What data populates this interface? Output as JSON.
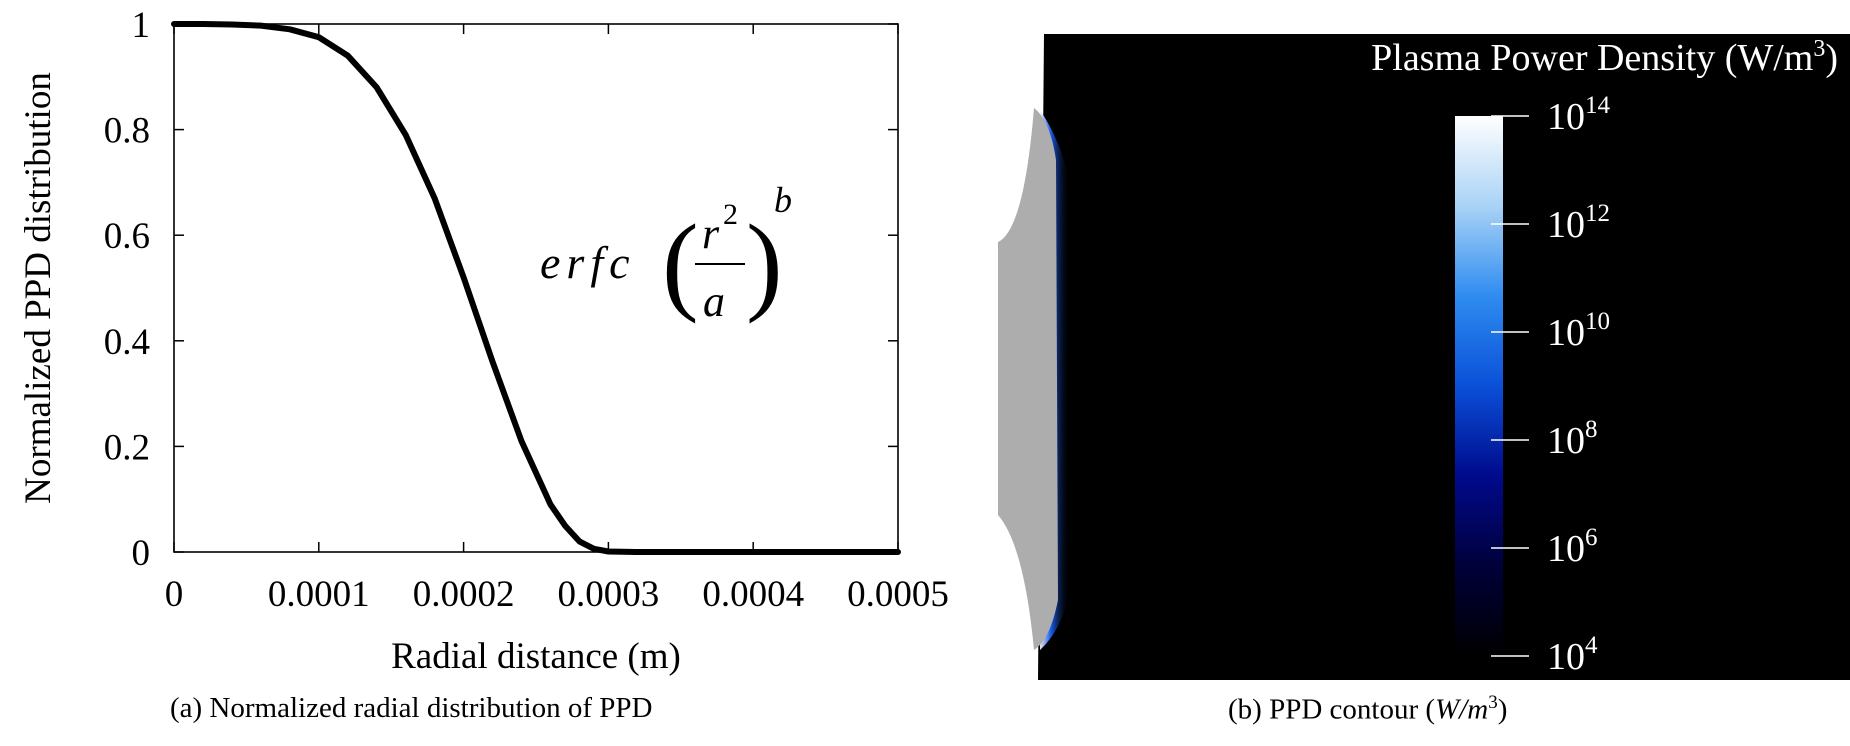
{
  "chart_data": [
    {
      "type": "line",
      "caption": "(a) Normalized radial distribution of PPD",
      "xlabel": "Radial distance (m)",
      "ylabel": "Normalized PPD distribution",
      "xlim": [
        0,
        0.0005
      ],
      "ylim": [
        0,
        1
      ],
      "xticks": [
        0,
        0.0001,
        0.0002,
        0.0003,
        0.0004,
        0.0005
      ],
      "xtick_labels": [
        "0",
        "0.0001",
        "0.0002",
        "0.0003",
        "0.0004",
        "0.0005"
      ],
      "yticks": [
        0,
        0.2,
        0.4,
        0.6,
        0.8,
        1
      ],
      "ytick_labels": [
        "0",
        "0.2",
        "0.4",
        "0.6",
        "0.8",
        "1"
      ],
      "grid": false,
      "annotation": {
        "prefix": "erfc",
        "numerator_base": "r",
        "numerator_exp": "2",
        "denominator": "a",
        "exponent": "b"
      },
      "series": [
        {
          "x": [
            0,
            2e-05,
            4e-05,
            6e-05,
            8e-05,
            0.0001,
            0.00012,
            0.00014,
            0.00016,
            0.00018,
            0.0002,
            0.00022,
            0.00024,
            0.00026,
            0.00027,
            0.00028,
            0.00029,
            0.0003,
            0.00032,
            0.00035,
            0.0004,
            0.00045,
            0.0005
          ],
          "y": [
            1.0,
            1.0,
            0.999,
            0.997,
            0.99,
            0.975,
            0.94,
            0.88,
            0.79,
            0.67,
            0.52,
            0.36,
            0.21,
            0.09,
            0.05,
            0.02,
            0.006,
            0.001,
            0,
            0,
            0,
            0,
            0
          ]
        }
      ],
      "line_color": "#000000"
    },
    {
      "type": "heatmap",
      "caption_text": "(b) PPD contour (",
      "caption_unit": "W/m",
      "caption_unit_exp": "3",
      "caption_close": ")",
      "colorbar": {
        "title": "Plasma Power Density (W/m",
        "title_exp": "3",
        "title_close": ")",
        "scale": "log",
        "range": [
          4,
          14
        ],
        "ticks": [
          {
            "base": "10",
            "exp": "14",
            "value": 14
          },
          {
            "base": "10",
            "exp": "12",
            "value": 12
          },
          {
            "base": "10",
            "exp": "10",
            "value": 10
          },
          {
            "base": "10",
            "exp": "8",
            "value": 8
          },
          {
            "base": "10",
            "exp": "6",
            "value": 6
          },
          {
            "base": "10",
            "exp": "4",
            "value": 4
          }
        ],
        "colors": [
          "#000000",
          "#00003a",
          "#000a8c",
          "#0a50d8",
          "#2f8cf0",
          "#a9d2f6",
          "#ffffff"
        ]
      },
      "background_color": "#000000",
      "region_color": "#adadad",
      "edge_glow_color": "#1e64ff"
    }
  ]
}
